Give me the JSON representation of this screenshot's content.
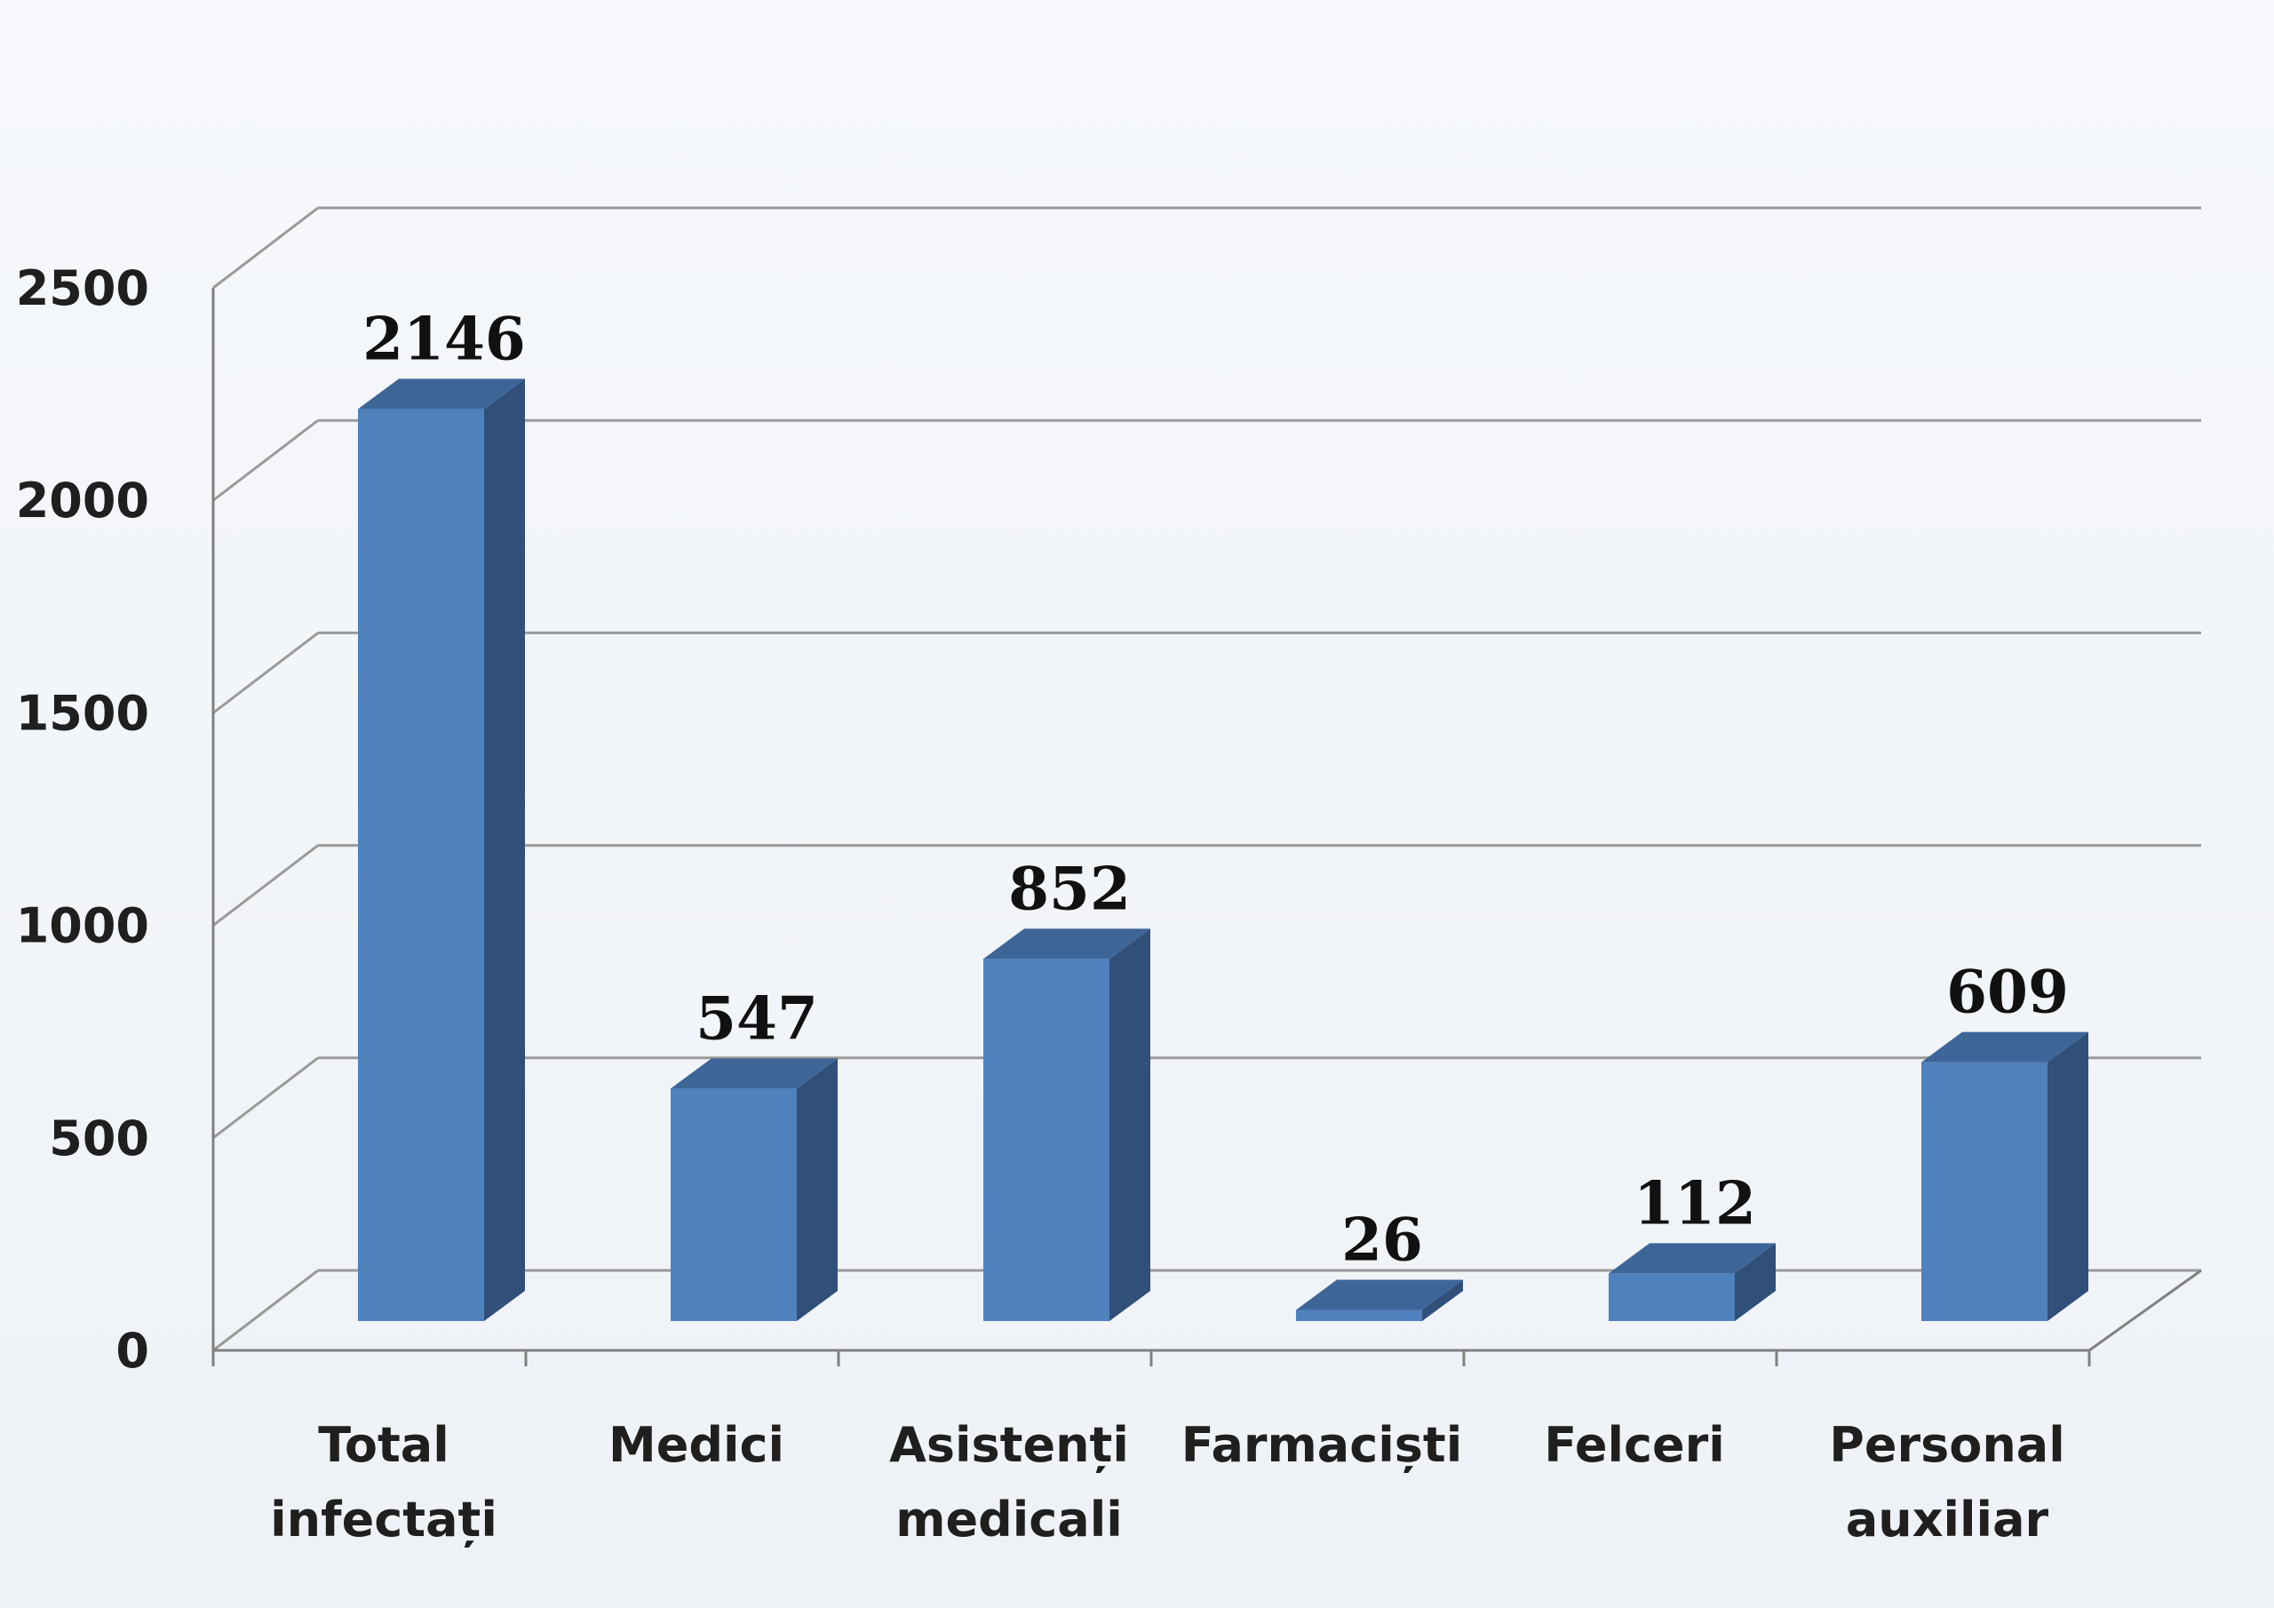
{
  "chart_data": {
    "type": "bar",
    "categories": [
      [
        "Total",
        "infectați"
      ],
      [
        "Medici"
      ],
      [
        "Asistenți",
        "medicali"
      ],
      [
        "Farmaciști"
      ],
      [
        "Felceri"
      ],
      [
        "Personal",
        "auxiliar"
      ]
    ],
    "values": [
      2146,
      547,
      852,
      26,
      112,
      609
    ],
    "ylim": [
      0,
      2500
    ],
    "yticks": [
      0,
      500,
      1000,
      1500,
      2000,
      2500
    ],
    "grid": true,
    "style": "3d",
    "colors": {
      "bar_front": "#4f81bd",
      "bar_side": "#30507a",
      "bar_top": "#3d6598",
      "grid": "#9a9a9a",
      "axis": "#808080",
      "background": "#f0f3f7"
    }
  }
}
